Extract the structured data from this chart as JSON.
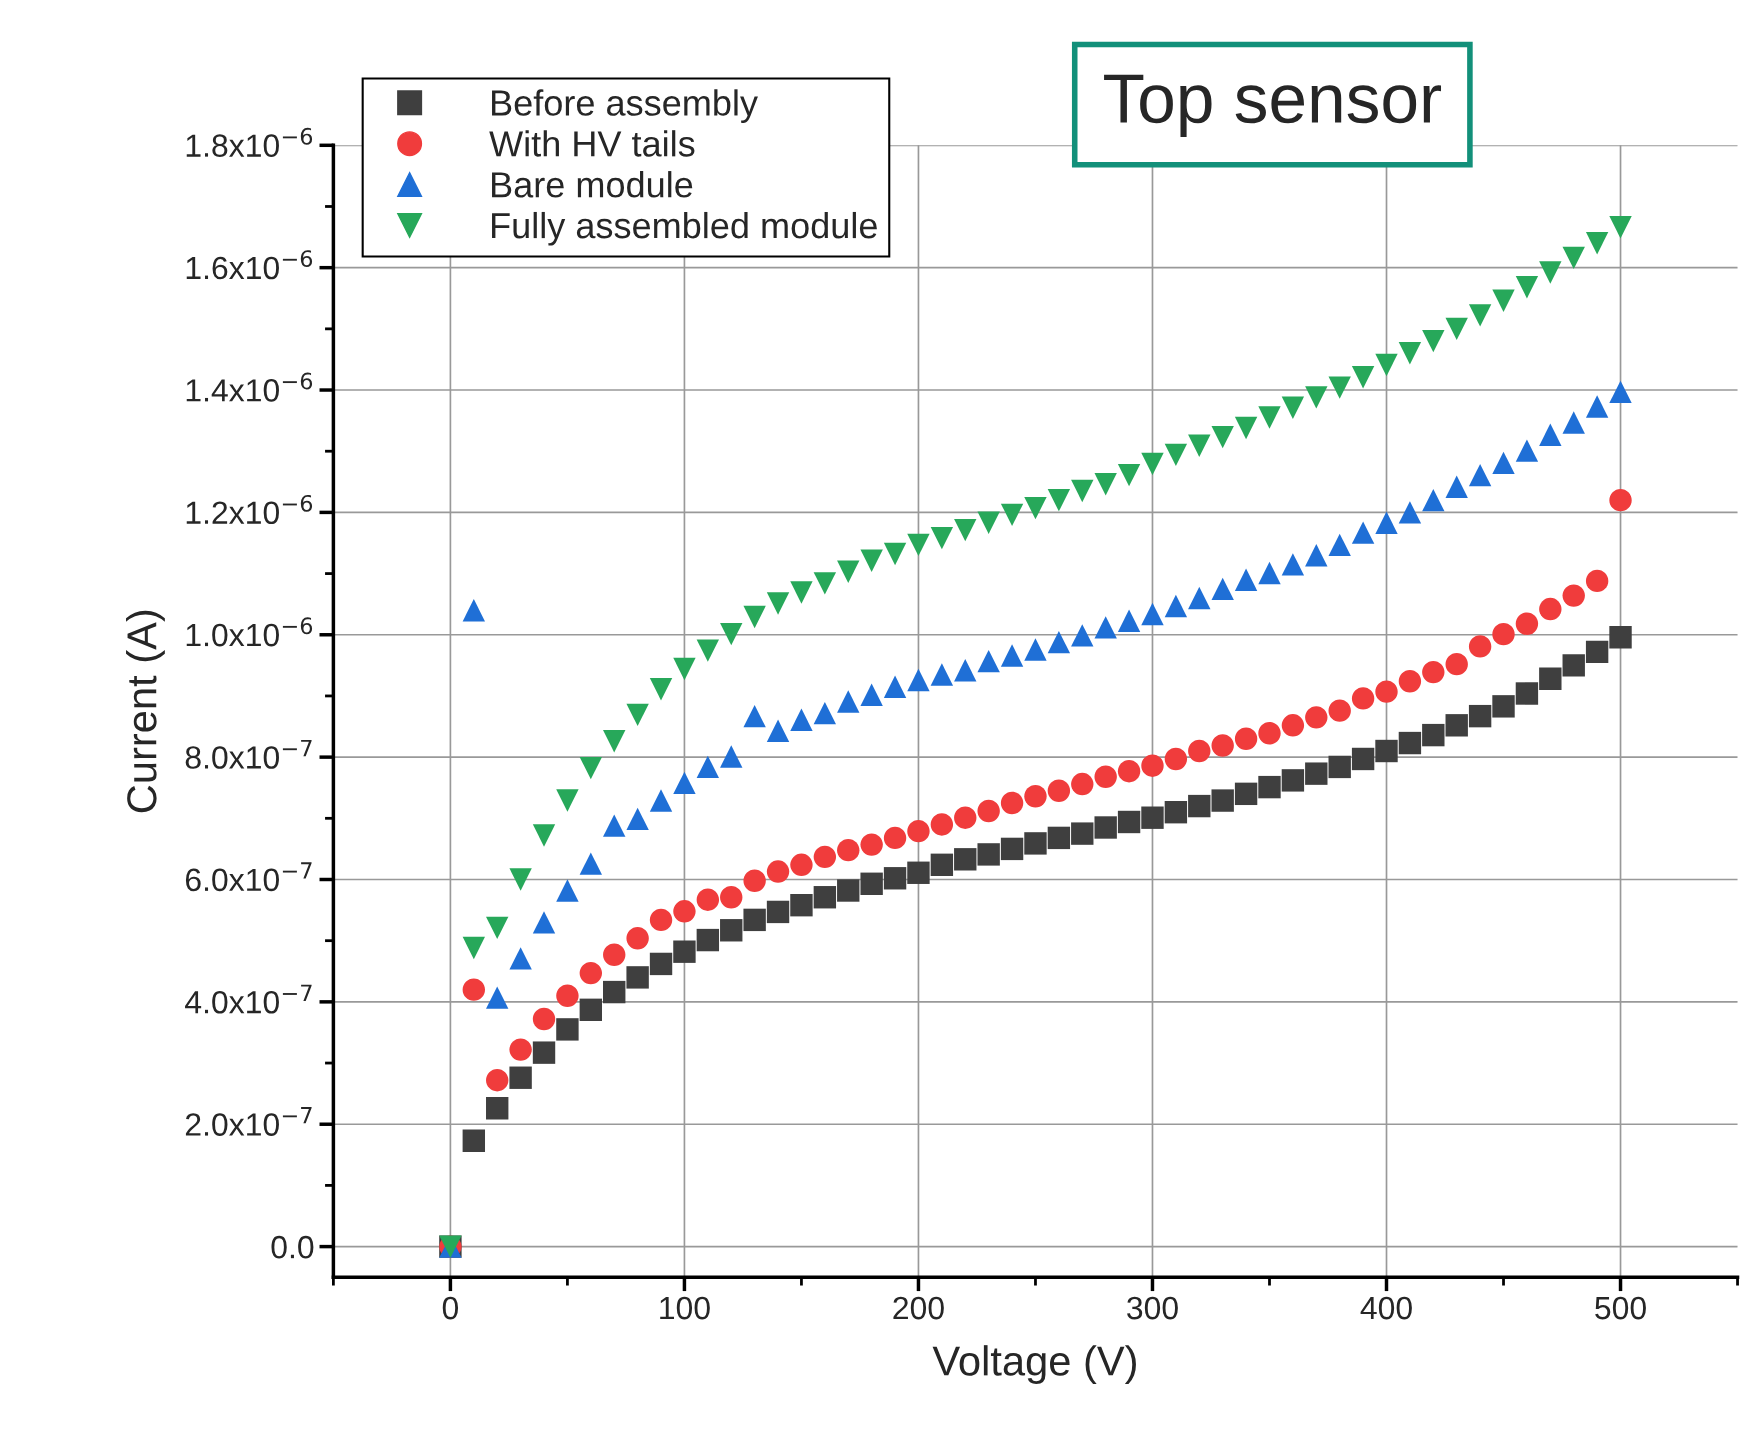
{
  "chart_data": {
    "type": "scatter",
    "xlabel": "Voltage (V)",
    "ylabel": "Current (A)",
    "x": [
      0,
      10,
      20,
      30,
      40,
      50,
      60,
      70,
      80,
      90,
      100,
      110,
      120,
      130,
      140,
      150,
      160,
      170,
      180,
      190,
      200,
      210,
      220,
      230,
      240,
      250,
      260,
      270,
      280,
      290,
      300,
      310,
      320,
      330,
      340,
      350,
      360,
      370,
      380,
      390,
      400,
      410,
      420,
      430,
      440,
      450,
      460,
      470,
      480,
      490,
      500
    ],
    "series": [
      {
        "name": "Before assembly",
        "color": "#3f3f3f",
        "marker": "square",
        "values": [
          0,
          1.73e-07,
          2.26e-07,
          2.76e-07,
          3.17e-07,
          3.55e-07,
          3.87e-07,
          4.16e-07,
          4.4e-07,
          4.62e-07,
          4.82e-07,
          5.01e-07,
          5.17e-07,
          5.34e-07,
          5.47e-07,
          5.58e-07,
          5.71e-07,
          5.82e-07,
          5.93e-07,
          6.02e-07,
          6.11e-07,
          6.24e-07,
          6.33e-07,
          6.41e-07,
          6.5e-07,
          6.59e-07,
          6.68e-07,
          6.75e-07,
          6.85e-07,
          6.94e-07,
          7.01e-07,
          7.1e-07,
          7.2e-07,
          7.29e-07,
          7.4e-07,
          7.51e-07,
          7.62e-07,
          7.73e-07,
          7.84e-07,
          7.97e-07,
          8.1e-07,
          8.23e-07,
          8.36e-07,
          8.52e-07,
          8.67e-07,
          8.83e-07,
          9.04e-07,
          9.28e-07,
          9.5e-07,
          9.72e-07,
          9.96e-07
        ]
      },
      {
        "name": "With HV tails",
        "color": "#f03c3c",
        "marker": "circle",
        "values": [
          0,
          4.2e-07,
          2.72e-07,
          3.22e-07,
          3.72e-07,
          4.1e-07,
          4.47e-07,
          4.77e-07,
          5.04e-07,
          5.34e-07,
          5.48e-07,
          5.67e-07,
          5.71e-07,
          5.98e-07,
          6.13e-07,
          6.24e-07,
          6.37e-07,
          6.48e-07,
          6.57e-07,
          6.68e-07,
          6.79e-07,
          6.9e-07,
          7.01e-07,
          7.12e-07,
          7.25e-07,
          7.36e-07,
          7.45e-07,
          7.56e-07,
          7.68e-07,
          7.77e-07,
          7.86e-07,
          7.97e-07,
          8.1e-07,
          8.19e-07,
          8.3e-07,
          8.39e-07,
          8.52e-07,
          8.65e-07,
          8.76e-07,
          8.96e-07,
          9.07e-07,
          9.24e-07,
          9.39e-07,
          9.52e-07,
          9.81e-07,
          1.001e-06,
          1.018e-06,
          1.042e-06,
          1.064e-06,
          1.088e-06,
          1.22e-06
        ]
      },
      {
        "name": "Bare module",
        "color": "#1f6fd6",
        "marker": "triangle",
        "values": [
          0,
          1.04e-06,
          4.07e-07,
          4.71e-07,
          5.3e-07,
          5.82e-07,
          6.26e-07,
          6.88e-07,
          6.99e-07,
          7.29e-07,
          7.58e-07,
          7.84e-07,
          8.01e-07,
          8.67e-07,
          8.43e-07,
          8.61e-07,
          8.72e-07,
          8.91e-07,
          9.02e-07,
          9.15e-07,
          9.26e-07,
          9.35e-07,
          9.42e-07,
          9.57e-07,
          9.66e-07,
          9.76e-07,
          9.88e-07,
          9.99e-07,
          1.012e-06,
          1.023e-06,
          1.034e-06,
          1.047e-06,
          1.06e-06,
          1.075e-06,
          1.09e-06,
          1.101e-06,
          1.115e-06,
          1.13e-06,
          1.147e-06,
          1.167e-06,
          1.183e-06,
          1.2e-06,
          1.22e-06,
          1.242e-06,
          1.261e-06,
          1.281e-06,
          1.301e-06,
          1.327e-06,
          1.347e-06,
          1.373e-06,
          1.397e-06
        ]
      },
      {
        "name": "Fully assembled module",
        "color": "#27a85a",
        "marker": "triangle_down",
        "values": [
          0,
          4.88e-07,
          5.21e-07,
          6e-07,
          6.72e-07,
          7.29e-07,
          7.82e-07,
          8.26e-07,
          8.69e-07,
          9.11e-07,
          9.44e-07,
          9.74e-07,
          1.001e-06,
          1.029e-06,
          1.051e-06,
          1.069e-06,
          1.084e-06,
          1.103e-06,
          1.121e-06,
          1.132e-06,
          1.147e-06,
          1.158e-06,
          1.171e-06,
          1.183e-06,
          1.196e-06,
          1.207e-06,
          1.22e-06,
          1.235e-06,
          1.246e-06,
          1.261e-06,
          1.279e-06,
          1.294e-06,
          1.309e-06,
          1.323e-06,
          1.338e-06,
          1.355e-06,
          1.371e-06,
          1.388e-06,
          1.404e-06,
          1.421e-06,
          1.441e-06,
          1.46e-06,
          1.48e-06,
          1.5e-06,
          1.522e-06,
          1.546e-06,
          1.568e-06,
          1.592e-06,
          1.616e-06,
          1.64e-06,
          1.666e-06
        ]
      }
    ],
    "xlim": [
      -50,
      550
    ],
    "xticks": [
      0,
      100,
      200,
      300,
      400,
      500
    ],
    "ylim": [
      -5e-08,
      1.8e-06
    ],
    "yticks": [
      {
        "value": 0,
        "label": "0.0"
      },
      {
        "value": 2e-07,
        "label": "2.0x10$^{−7}$"
      },
      {
        "value": 4e-07,
        "label": "4.0x10$^{−7}$"
      },
      {
        "value": 6e-07,
        "label": "6.0x10$^{−7}$"
      },
      {
        "value": 8e-07,
        "label": "8.0x10$^{−7}$"
      },
      {
        "value": 1e-06,
        "label": "1.0x10$^{−6}$"
      },
      {
        "value": 1.2e-06,
        "label": "1.2x10$^{−6}$"
      },
      {
        "value": 1.4e-06,
        "label": "1.4x10$^{−6}$"
      },
      {
        "value": 1.6e-06,
        "label": "1.6x10$^{−6}$"
      },
      {
        "value": 1.8e-06,
        "label": "1.8x10$^{−6}$"
      }
    ],
    "grid": true,
    "legend": "top left",
    "annotations": [
      "Top sensor"
    ]
  }
}
